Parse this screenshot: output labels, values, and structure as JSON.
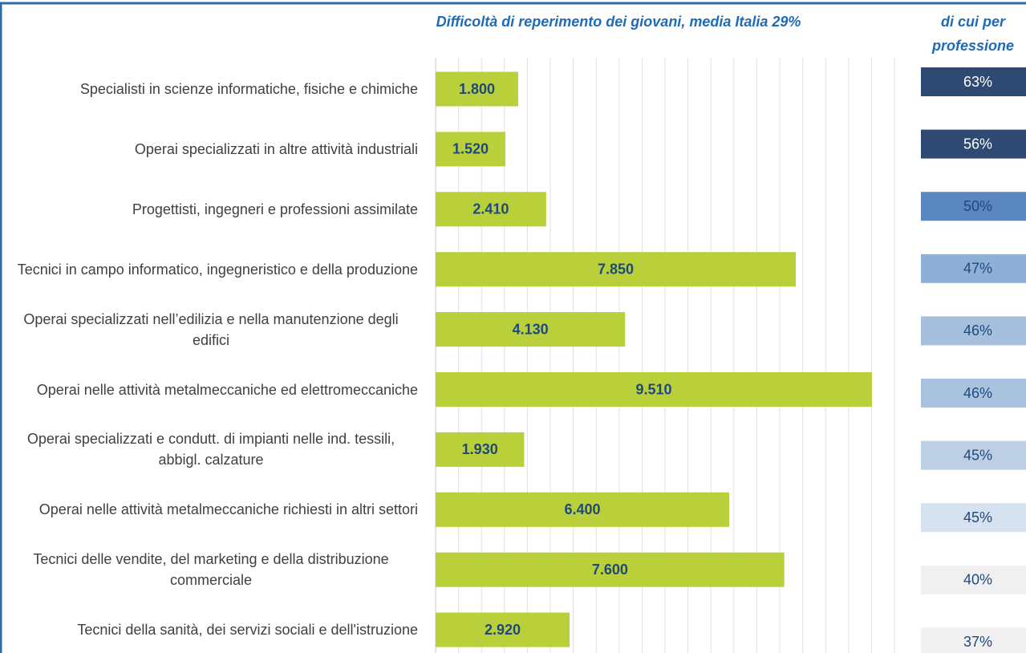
{
  "chart_data": {
    "type": "bar",
    "orientation": "horizontal",
    "subtitle": "Difficoltà di reperimento dei giovani, media Italia 29%",
    "column_title": [
      "di cui per",
      "professione"
    ],
    "categories": [
      "Specialisti in scienze informatiche, fisiche e chimiche",
      "Operai specializzati in altre attività industriali",
      "Progettisti, ingegneri e professioni assimilate",
      "Tecnici in campo informatico, ingegneristico e della produzione",
      "Operai specializzati nell’edilizia e nella manutenzione degli edifici",
      "Operai nelle attività metalmeccaniche ed elettromeccaniche",
      "Operai specializzati e condutt. di impianti nelle ind. tessili, abbigl. calzature",
      "Operai nelle attività metalmeccaniche richiesti in altri settori",
      "Tecnici delle vendite, del marketing e della distribuzione commerciale",
      "Tecnici della sanità, dei servizi sociali e dell'istruzione"
    ],
    "values": [
      1800,
      1520,
      2410,
      7850,
      4130,
      9510,
      1930,
      6400,
      7600,
      2920
    ],
    "value_labels": [
      "1.800",
      "1.520",
      "2.410",
      "7.850",
      "4.130",
      "9.510",
      "1.930",
      "6.400",
      "7.600",
      "2.920"
    ],
    "color": "#b9d03b",
    "xlim": [
      0,
      10000
    ],
    "xticks": [
      0,
      500,
      1000,
      1500,
      2000,
      2500,
      3000,
      3500,
      4000,
      4500,
      5000,
      5500,
      6000,
      6500,
      7000,
      7500,
      8000,
      8500,
      9000,
      9500,
      10000
    ],
    "grid": true,
    "difficulty": {
      "values": [
        63,
        56,
        50,
        47,
        46,
        46,
        45,
        45,
        40,
        37
      ],
      "value_labels": [
        "63%",
        "56%",
        "50%",
        "47%",
        "46%",
        "46%",
        "45%",
        "45%",
        "40%",
        "37%"
      ],
      "colors": [
        "#2e4a72",
        "#2e4a72",
        "#5b87c0",
        "#8fb0d6",
        "#a5bfdd",
        "#a9c2de",
        "#bccfe5",
        "#d6e2ef",
        "#f0f0f0",
        "#f0f0f0"
      ]
    }
  }
}
